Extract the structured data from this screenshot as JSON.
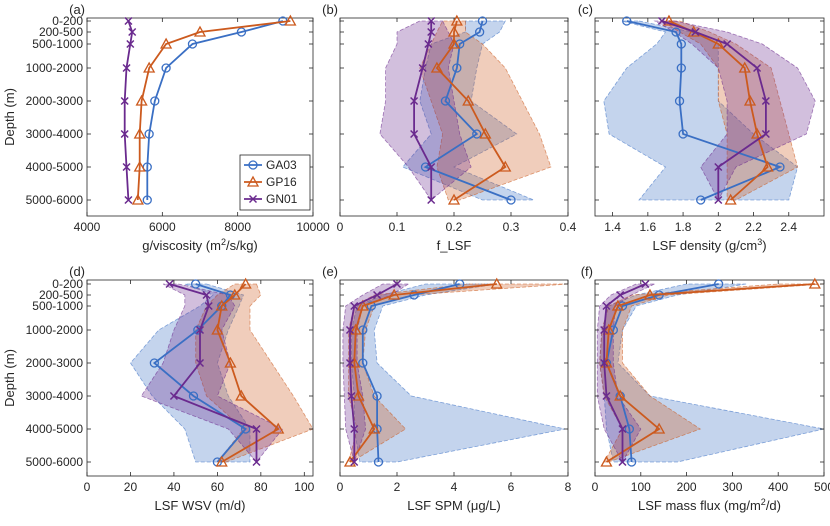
{
  "figure": {
    "depth_categories": [
      "0-200",
      "200-500",
      "500-1000",
      "1000-2000",
      "2000-3000",
      "3000-4000",
      "4000-5000",
      "5000-6000"
    ],
    "depth_values": [
      100,
      350,
      750,
      1500,
      2500,
      3500,
      4500,
      5500
    ],
    "y_label": "Depth (m)",
    "legend": [
      {
        "name": "GA03",
        "color": "#3a6fc4",
        "marker": "circle"
      },
      {
        "name": "GP16",
        "color": "#cc5a1e",
        "marker": "triangle"
      },
      {
        "name": "GN01",
        "color": "#6a2a8e",
        "marker": "x"
      }
    ]
  },
  "chart_data": [
    {
      "type": "line",
      "panel_label": "(a)",
      "xlabel": "g/viscosity (m",
      "xlabel_sup": "2",
      "xlabel_tail": "/s/kg)",
      "xlim": [
        4000,
        10000
      ],
      "xticks": [
        4000,
        6000,
        8000,
        10000
      ],
      "xtick_labels": [
        "4000",
        "6000",
        "8000",
        "10000"
      ],
      "bands": false,
      "series": [
        {
          "name": "GA03",
          "color": "#3a6fc4",
          "marker": "circle",
          "values": [
            9200,
            8100,
            6800,
            6100,
            5800,
            5650,
            5600,
            5600
          ]
        },
        {
          "name": "GP16",
          "color": "#cc5a1e",
          "marker": "triangle",
          "values": [
            9400,
            7000,
            6100,
            5650,
            5450,
            5400,
            5400,
            5350
          ]
        },
        {
          "name": "GN01",
          "color": "#6a2a8e",
          "marker": "x",
          "values": [
            5100,
            5200,
            5150,
            5050,
            5000,
            5000,
            5050,
            5100
          ]
        }
      ]
    },
    {
      "type": "line",
      "panel_label": "(b)",
      "xlabel": "f_LSF",
      "xlabel_sup": "",
      "xlabel_tail": "",
      "xlim": [
        0,
        0.4
      ],
      "xticks": [
        0,
        0.1,
        0.2,
        0.3,
        0.4
      ],
      "xtick_labels": [
        "0",
        "0.1",
        "0.2",
        "0.3",
        "0.4"
      ],
      "bands": true,
      "series": [
        {
          "name": "GA03",
          "color": "#3a6fc4",
          "marker": "circle",
          "values": [
            0.25,
            0.245,
            0.21,
            0.205,
            0.185,
            0.24,
            0.15,
            0.3
          ],
          "lower": [
            0.22,
            0.22,
            0.16,
            0.15,
            0.14,
            0.16,
            0.11,
            0.25
          ],
          "upper": [
            0.29,
            0.28,
            0.25,
            0.24,
            0.23,
            0.31,
            0.2,
            0.34
          ]
        },
        {
          "name": "GP16",
          "color": "#cc5a1e",
          "marker": "triangle",
          "values": [
            0.205,
            0.2,
            0.2,
            0.17,
            0.225,
            0.255,
            0.29,
            0.2
          ],
          "lower": [
            0.18,
            0.17,
            0.16,
            0.14,
            0.16,
            0.18,
            0.17,
            0.19
          ],
          "upper": [
            0.22,
            0.22,
            0.25,
            0.29,
            0.32,
            0.35,
            0.37,
            0.21
          ]
        },
        {
          "name": "GN01",
          "color": "#6a2a8e",
          "marker": "x",
          "values": [
            0.16,
            0.16,
            0.155,
            0.145,
            0.13,
            0.13,
            0.16,
            0.16
          ],
          "lower": [
            0.14,
            0.1,
            0.1,
            0.08,
            0.08,
            0.07,
            0.12,
            0.16
          ],
          "upper": [
            0.18,
            0.19,
            0.2,
            0.19,
            0.2,
            0.21,
            0.23,
            0.16
          ]
        }
      ]
    },
    {
      "type": "line",
      "panel_label": "(c)",
      "xlabel": "LSF density (g/cm",
      "xlabel_sup": "3",
      "xlabel_tail": ")",
      "xlim": [
        1.3,
        2.6
      ],
      "xticks": [
        1.4,
        1.6,
        1.8,
        2.0,
        2.2,
        2.4
      ],
      "xtick_labels": [
        "1.4",
        "1.6",
        "1.8",
        "2",
        "2.2",
        "2.4"
      ],
      "bands": true,
      "series": [
        {
          "name": "GA03",
          "color": "#3a6fc4",
          "marker": "circle",
          "values": [
            1.48,
            1.76,
            1.79,
            1.79,
            1.78,
            1.8,
            2.35,
            1.9
          ],
          "lower": [
            1.45,
            1.7,
            1.65,
            1.48,
            1.35,
            1.38,
            1.7,
            1.55
          ],
          "upper": [
            1.55,
            1.85,
            2.0,
            2.0,
            2.0,
            2.2,
            2.45,
            2.4
          ]
        },
        {
          "name": "GP16",
          "color": "#cc5a1e",
          "marker": "triangle",
          "values": [
            1.72,
            1.86,
            2.0,
            2.15,
            2.18,
            2.22,
            2.28,
            2.07
          ],
          "lower": [
            1.68,
            1.78,
            1.9,
            2.0,
            2.0,
            2.05,
            2.05,
            2.05
          ],
          "upper": [
            1.78,
            1.95,
            2.1,
            2.3,
            2.35,
            2.4,
            2.45,
            2.1
          ]
        },
        {
          "name": "GN01",
          "color": "#6a2a8e",
          "marker": "x",
          "values": [
            1.68,
            1.87,
            2.05,
            2.22,
            2.27,
            2.27,
            2.0,
            2.0
          ],
          "lower": [
            1.64,
            1.75,
            1.85,
            2.0,
            2.05,
            2.05,
            1.9,
            2.0
          ],
          "upper": [
            1.75,
            2.05,
            2.25,
            2.45,
            2.55,
            2.5,
            2.1,
            2.0
          ]
        }
      ]
    },
    {
      "type": "line",
      "panel_label": "(d)",
      "xlabel": "LSF WSV (m/d)",
      "xlabel_sup": "",
      "xlabel_tail": "",
      "xlim": [
        0,
        104
      ],
      "xticks": [
        0,
        20,
        40,
        60,
        80,
        100
      ],
      "xtick_labels": [
        "0",
        "20",
        "40",
        "60",
        "80",
        "100"
      ],
      "bands": true,
      "series": [
        {
          "name": "GA03",
          "color": "#3a6fc4",
          "marker": "circle",
          "values": [
            50,
            66,
            62,
            51,
            31,
            49,
            73,
            60
          ],
          "lower": [
            45,
            58,
            52,
            33,
            20,
            30,
            45,
            50
          ],
          "upper": [
            55,
            72,
            70,
            65,
            60,
            65,
            75,
            75
          ]
        },
        {
          "name": "GP16",
          "color": "#cc5a1e",
          "marker": "triangle",
          "values": [
            73,
            68,
            62,
            60,
            66,
            71,
            88,
            62
          ],
          "lower": [
            68,
            60,
            55,
            50,
            50,
            55,
            72,
            60
          ],
          "upper": [
            78,
            80,
            75,
            75,
            85,
            95,
            104,
            64
          ]
        },
        {
          "name": "GN01",
          "color": "#6a2a8e",
          "marker": "x",
          "values": [
            38,
            55,
            56,
            52,
            52,
            40,
            78,
            78
          ],
          "lower": [
            35,
            45,
            45,
            40,
            35,
            25,
            65,
            78
          ],
          "upper": [
            42,
            65,
            68,
            62,
            66,
            60,
            90,
            78
          ]
        }
      ]
    },
    {
      "type": "line",
      "panel_label": "(e)",
      "xlabel": "LSF SPM (μg/L)",
      "xlabel_sup": "",
      "xlabel_tail": "",
      "xlim": [
        0,
        8
      ],
      "xticks": [
        0,
        2,
        4,
        6,
        8
      ],
      "xtick_labels": [
        "0",
        "2",
        "4",
        "6",
        "8"
      ],
      "bands": true,
      "series": [
        {
          "name": "GA03",
          "color": "#3a6fc4",
          "marker": "circle",
          "values": [
            4.2,
            2.6,
            1.1,
            0.8,
            0.8,
            1.3,
            1.3,
            1.35
          ],
          "lower": [
            3.0,
            1.5,
            0.6,
            0.4,
            0.4,
            0.5,
            0.5,
            0.7
          ],
          "upper": [
            5.5,
            3.0,
            1.5,
            1.2,
            1.3,
            2.5,
            7.9,
            2.0
          ]
        },
        {
          "name": "GP16",
          "color": "#cc5a1e",
          "marker": "triangle",
          "values": [
            5.5,
            1.9,
            0.8,
            0.55,
            0.5,
            0.65,
            1.2,
            0.35
          ],
          "lower": [
            4.5,
            1.2,
            0.5,
            0.3,
            0.3,
            0.3,
            0.6,
            0.3
          ],
          "upper": [
            8.0,
            2.5,
            1.2,
            0.9,
            0.8,
            1.2,
            2.3,
            0.4
          ]
        },
        {
          "name": "GN01",
          "color": "#6a2a8e",
          "marker": "x",
          "values": [
            2.0,
            1.3,
            0.5,
            0.35,
            0.35,
            0.4,
            0.5,
            0.5
          ],
          "lower": [
            1.5,
            0.8,
            0.2,
            0.1,
            0.1,
            0.15,
            0.2,
            0.5
          ],
          "upper": [
            2.4,
            1.8,
            0.8,
            0.6,
            0.6,
            0.8,
            0.9,
            0.5
          ]
        }
      ]
    },
    {
      "type": "line",
      "panel_label": "(f)",
      "xlabel": "LSF mass flux (mg/m",
      "xlabel_sup": "2",
      "xlabel_tail": "/d)",
      "xlim": [
        0,
        500
      ],
      "xticks": [
        0,
        100,
        200,
        300,
        400,
        500
      ],
      "xtick_labels": [
        "0",
        "100",
        "200",
        "300",
        "400",
        "500"
      ],
      "bands": true,
      "series": [
        {
          "name": "GA03",
          "color": "#3a6fc4",
          "marker": "circle",
          "values": [
            270,
            140,
            60,
            40,
            25,
            55,
            75,
            80
          ],
          "lower": [
            200,
            90,
            30,
            15,
            10,
            20,
            25,
            40
          ],
          "upper": [
            330,
            180,
            90,
            60,
            50,
            120,
            500,
            180
          ]
        },
        {
          "name": "GP16",
          "color": "#cc5a1e",
          "marker": "triangle",
          "values": [
            480,
            120,
            50,
            30,
            25,
            55,
            140,
            25
          ],
          "lower": [
            400,
            80,
            30,
            15,
            10,
            20,
            60,
            20
          ],
          "upper": [
            500,
            160,
            80,
            60,
            60,
            120,
            230,
            30
          ]
        },
        {
          "name": "GN01",
          "color": "#6a2a8e",
          "marker": "x",
          "values": [
            110,
            55,
            25,
            20,
            20,
            25,
            60,
            60
          ],
          "lower": [
            90,
            35,
            10,
            5,
            5,
            5,
            20,
            60
          ],
          "upper": [
            130,
            80,
            45,
            40,
            40,
            50,
            100,
            60
          ]
        }
      ]
    }
  ]
}
